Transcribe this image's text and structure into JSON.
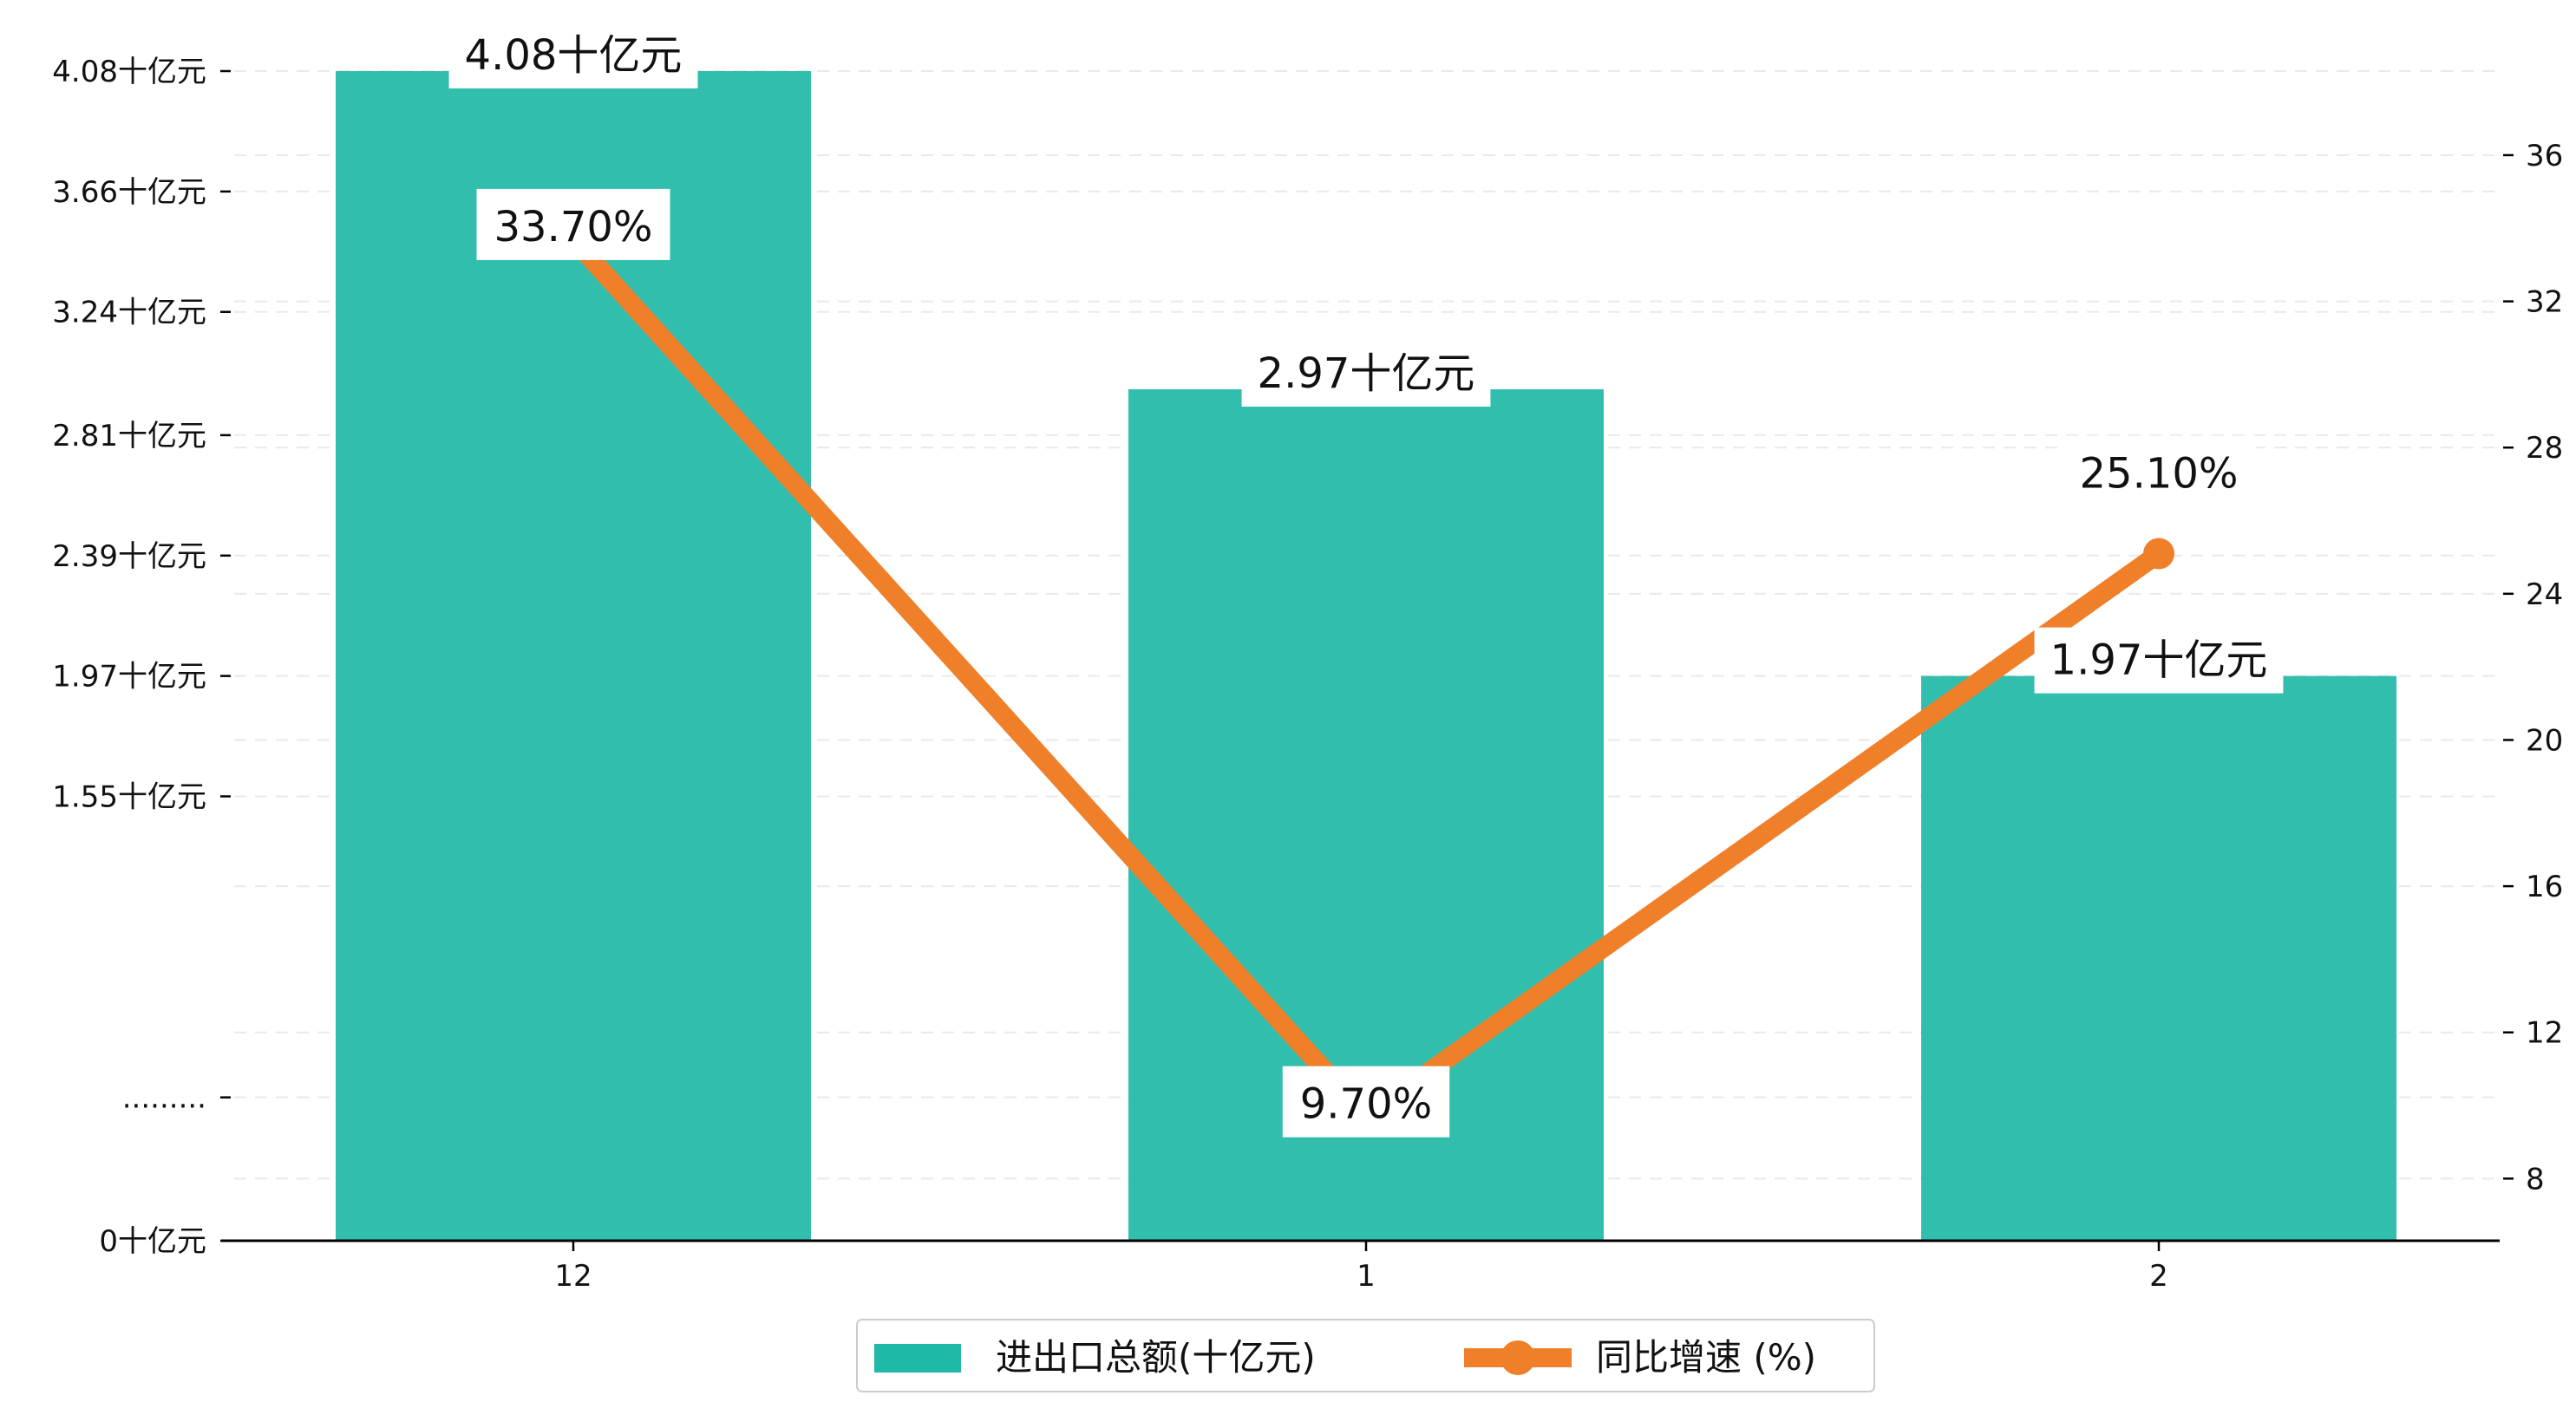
{
  "chart_data": {
    "type": "bar",
    "categories": [
      "12",
      "1",
      "2"
    ],
    "series": [
      {
        "name": "进出口总额(十亿元)",
        "type": "bar",
        "axis": "left",
        "values": [
          4.08,
          2.97,
          1.97
        ],
        "data_labels": [
          "4.08十亿元",
          "2.97十亿元",
          "1.97十亿元"
        ],
        "color": "#20B8A6"
      },
      {
        "name": "同比增速 (%)",
        "type": "line",
        "axis": "right",
        "values": [
          33.7,
          9.7,
          25.1
        ],
        "data_labels": [
          "33.70%",
          "9.70%",
          "25.10%"
        ],
        "color": "#F07F2A"
      }
    ],
    "y_left": {
      "ylim": [
        0,
        4.08
      ],
      "ticks": [
        {
          "value": 0,
          "label": "0十亿元"
        },
        {
          "value": 0.5,
          "label": "........."
        },
        {
          "value": 1.55,
          "label": "1.55十亿元"
        },
        {
          "value": 1.97,
          "label": "1.97十亿元"
        },
        {
          "value": 2.39,
          "label": "2.39十亿元"
        },
        {
          "value": 2.81,
          "label": "2.81十亿元"
        },
        {
          "value": 3.24,
          "label": "3.24十亿元"
        },
        {
          "value": 3.66,
          "label": "3.66十亿元"
        },
        {
          "value": 4.08,
          "label": "4.08十亿元"
        }
      ]
    },
    "y_right": {
      "ylim": [
        6.3,
        38.3
      ],
      "ticks": [
        8,
        12,
        16,
        20,
        24,
        28,
        32,
        36
      ]
    },
    "grid": true,
    "legend_position": "bottom-center",
    "title": "",
    "xlabel": "",
    "ylabel": ""
  }
}
